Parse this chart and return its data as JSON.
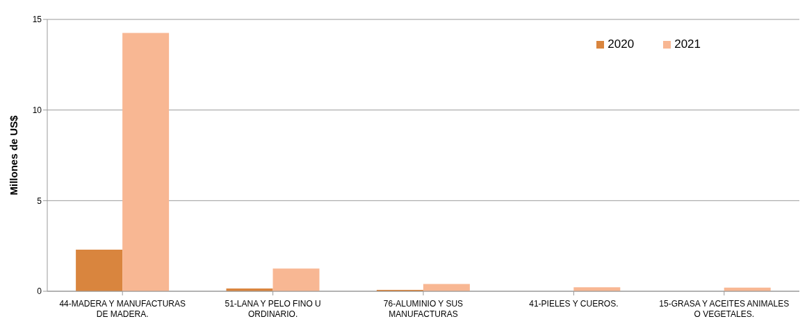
{
  "chart_data": {
    "type": "bar",
    "ylabel": "Millones de US$",
    "categories": [
      "44-MADERA Y MANUFACTURAS DE MADERA.",
      "51-LANA Y PELO FINO U ORDINARIO.",
      "76-ALUMINIO Y SUS MANUFACTURAS",
      "41-PIELES Y CUEROS.",
      "15-GRASA Y ACEITES ANIMALES O VEGETALES."
    ],
    "series": [
      {
        "name": "2020",
        "color": "#d9853e",
        "values": [
          2.3,
          0.15,
          0.08,
          0,
          0
        ]
      },
      {
        "name": "2021",
        "color": "#f8b793",
        "values": [
          14.25,
          1.25,
          0.4,
          0.22,
          0.2
        ]
      }
    ],
    "ylim": [
      0,
      15
    ],
    "yticks": [
      0,
      5,
      10,
      15
    ],
    "grid": "y",
    "legend": "top right"
  }
}
